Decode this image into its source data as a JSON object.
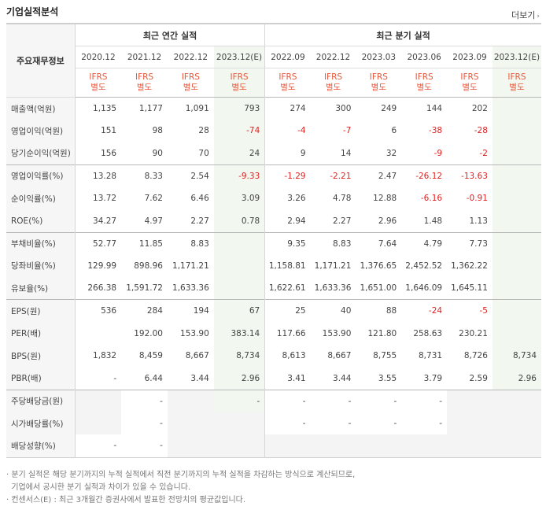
{
  "header": {
    "title": "기업실적분석",
    "more_label": "더보기",
    "more_icon": "›"
  },
  "table": {
    "row_header_label": "주요재무정보",
    "group_annual": "최근 연간 실적",
    "group_quarter": "최근 분기 실적",
    "periods": [
      "2020.12",
      "2021.12",
      "2022.12",
      "2023.12(E)",
      "2022.09",
      "2022.12",
      "2023.03",
      "2023.06",
      "2023.09",
      "2023.12(E)"
    ],
    "ifrs_line1": "IFRS",
    "ifrs_line2": "별도",
    "rows": [
      {
        "label": "매출액(억원)",
        "values": [
          "1,135",
          "1,177",
          "1,091",
          "793",
          "274",
          "300",
          "249",
          "144",
          "202",
          ""
        ]
      },
      {
        "label": "영업이익(억원)",
        "values": [
          "151",
          "98",
          "28",
          "-74",
          "-4",
          "-7",
          "6",
          "-38",
          "-28",
          ""
        ]
      },
      {
        "label": "당기순이익(억원)",
        "values": [
          "156",
          "90",
          "70",
          "24",
          "9",
          "14",
          "32",
          "-9",
          "-2",
          ""
        ]
      },
      {
        "label": "영업이익률(%)",
        "values": [
          "13.28",
          "8.33",
          "2.54",
          "-9.33",
          "-1.29",
          "-2.21",
          "2.47",
          "-26.12",
          "-13.63",
          ""
        ]
      },
      {
        "label": "순이익률(%)",
        "values": [
          "13.72",
          "7.62",
          "6.46",
          "3.09",
          "3.26",
          "4.78",
          "12.88",
          "-6.16",
          "-0.91",
          ""
        ]
      },
      {
        "label": "ROE(%)",
        "values": [
          "34.27",
          "4.97",
          "2.27",
          "0.78",
          "2.94",
          "2.27",
          "2.96",
          "1.48",
          "1.13",
          ""
        ]
      },
      {
        "label": "부채비율(%)",
        "values": [
          "52.77",
          "11.85",
          "8.83",
          "",
          "9.35",
          "8.83",
          "7.64",
          "4.79",
          "7.73",
          ""
        ]
      },
      {
        "label": "당좌비율(%)",
        "values": [
          "129.99",
          "898.96",
          "1,171.21",
          "",
          "1,158.81",
          "1,171.21",
          "1,376.65",
          "2,452.52",
          "1,362.22",
          ""
        ]
      },
      {
        "label": "유보율(%)",
        "values": [
          "266.38",
          "1,591.72",
          "1,633.36",
          "",
          "1,622.61",
          "1,633.36",
          "1,651.00",
          "1,646.09",
          "1,645.11",
          ""
        ]
      },
      {
        "label": "EPS(원)",
        "values": [
          "536",
          "284",
          "194",
          "67",
          "25",
          "40",
          "88",
          "-24",
          "-5",
          ""
        ]
      },
      {
        "label": "PER(배)",
        "values": [
          "",
          "192.00",
          "153.90",
          "383.14",
          "117.66",
          "153.90",
          "121.80",
          "258.63",
          "230.21",
          ""
        ]
      },
      {
        "label": "BPS(원)",
        "values": [
          "1,832",
          "8,459",
          "8,667",
          "8,734",
          "8,613",
          "8,667",
          "8,755",
          "8,731",
          "8,726",
          "8,734"
        ]
      },
      {
        "label": "PBR(배)",
        "values": [
          "-",
          "6.44",
          "3.44",
          "2.96",
          "3.41",
          "3.44",
          "3.55",
          "3.79",
          "2.59",
          "2.96"
        ]
      },
      {
        "label": "주당배당금(원)",
        "values": [
          "",
          "-",
          "",
          "-",
          "-",
          "-",
          "-",
          "-",
          "",
          ""
        ]
      },
      {
        "label": "시가배당률(%)",
        "values": [
          "",
          "-",
          "",
          "",
          "-",
          "-",
          "-",
          "-",
          "",
          ""
        ]
      },
      {
        "label": "배당성향(%)",
        "values": [
          "-",
          "-",
          "",
          "",
          "",
          "",
          "",
          "",
          "",
          ""
        ]
      }
    ]
  },
  "notes": [
    "· 분기 실적은 해당 분기까지의 누적 실적에서 직전 분기까지의 누적 실적을 차감하는 방식으로 계산되므로,",
    "  기업에서 공시한 분기 실적과 차이가 있을 수 있습니다.",
    "· 컨센서스(E) : 최근 3개월간 증권사에서 발표한 전망치의 평균값입니다."
  ]
}
